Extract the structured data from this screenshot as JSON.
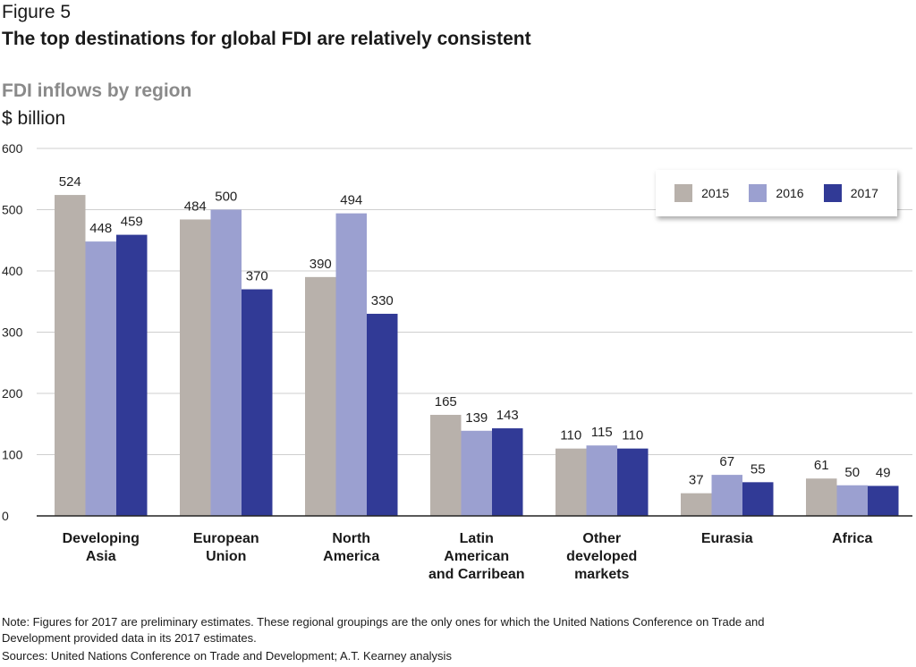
{
  "figure_label": "Figure 5",
  "title": "The top destinations for global FDI are relatively consistent",
  "note": "Note: Figures for 2017 are preliminary estimates. These regional groupings are the only ones for which the United Nations Conference on Trade and Development provided data in its 2017 estimates.",
  "sources": "Sources: United Nations Conference on Trade and Development; A.T. Kearney analysis",
  "chart_data": {
    "type": "bar",
    "title": "FDI inflows by region",
    "ylabel": "$ billion",
    "xlabel": "",
    "ylim": [
      0,
      600
    ],
    "yticks": [
      0,
      100,
      200,
      300,
      400,
      500,
      600
    ],
    "grid": true,
    "legend_position": "top-right",
    "categories": [
      [
        "Developing",
        "Asia"
      ],
      [
        "European",
        "Union"
      ],
      [
        "North",
        "America"
      ],
      [
        "Latin",
        "American",
        "and Carribean"
      ],
      [
        "Other",
        "developed",
        "markets"
      ],
      [
        "Eurasia"
      ],
      [
        "Africa"
      ]
    ],
    "series": [
      {
        "name": "2015",
        "color": "#b8b1ab",
        "values": [
          524,
          484,
          390,
          165,
          110,
          37,
          61
        ]
      },
      {
        "name": "2016",
        "color": "#9ba0d0",
        "values": [
          448,
          500,
          494,
          139,
          115,
          67,
          50
        ]
      },
      {
        "name": "2017",
        "color": "#313a96",
        "values": [
          459,
          370,
          330,
          143,
          110,
          55,
          49
        ]
      }
    ]
  }
}
